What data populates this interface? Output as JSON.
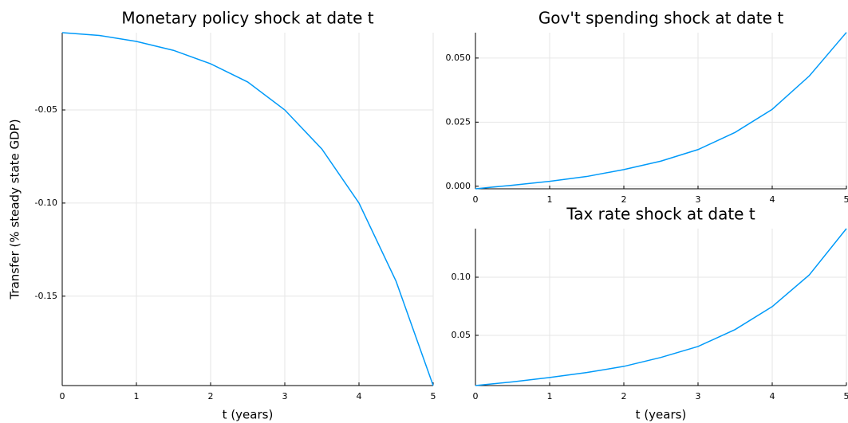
{
  "chart_data": [
    {
      "type": "line",
      "title": "Monetary policy shock at date t",
      "x_label": "t (years)",
      "y_label": "Transfer (% steady state GDP)",
      "x": [
        0,
        0.5,
        1,
        1.5,
        2,
        2.5,
        3,
        3.5,
        4,
        4.5,
        5
      ],
      "series": [
        {
          "color": "#009af9",
          "values": [
            -0.0085,
            -0.01,
            -0.0132,
            -0.018,
            -0.0252,
            -0.035,
            -0.05,
            -0.071,
            -0.1,
            -0.142,
            -0.198
          ]
        }
      ],
      "xlim": [
        0,
        5
      ],
      "xticks": [
        0,
        1,
        2,
        3,
        4,
        5
      ],
      "ylim": [
        -0.198,
        -0.0085
      ],
      "yticks": [
        -0.05,
        {
          "value": -0.1,
          "label": "-0.10"
        },
        -0.15
      ],
      "grid": true
    },
    {
      "type": "line",
      "title": "Gov't spending shock at date t",
      "x": [
        0,
        0.5,
        1,
        1.5,
        2,
        2.5,
        3,
        3.5,
        4,
        4.5,
        5
      ],
      "series": [
        {
          "color": "#009af9",
          "values": [
            -0.001,
            0.0004,
            0.0019,
            0.0038,
            0.0065,
            0.0098,
            0.0143,
            0.021,
            0.03,
            0.043,
            0.06
          ]
        }
      ],
      "xlim": [
        0,
        5
      ],
      "xticks": [
        0,
        1,
        2,
        3,
        4,
        5
      ],
      "ylim": [
        -0.001,
        0.0599
      ],
      "yticks": [
        {
          "value": 0,
          "label": "0.000"
        },
        0.025,
        {
          "value": 0.05,
          "label": "0.050"
        }
      ],
      "grid": true
    },
    {
      "type": "line",
      "title": "Tax rate shock at date t",
      "x_label": "t (years)",
      "x": [
        0,
        0.5,
        1,
        1.5,
        2,
        2.5,
        3,
        3.5,
        4,
        4.5,
        5
      ],
      "series": [
        {
          "color": "#009af9",
          "values": [
            0.0068,
            0.01,
            0.0137,
            0.018,
            0.0233,
            0.031,
            0.0404,
            0.055,
            0.0747,
            0.102,
            0.1418
          ]
        }
      ],
      "xlim": [
        0,
        5
      ],
      "xticks": [
        0,
        1,
        2,
        3,
        4,
        5
      ],
      "ylim": [
        0.0068,
        0.1418
      ],
      "yticks": [
        0.05,
        {
          "value": 0.1,
          "label": "0.10"
        }
      ],
      "grid": true
    }
  ]
}
